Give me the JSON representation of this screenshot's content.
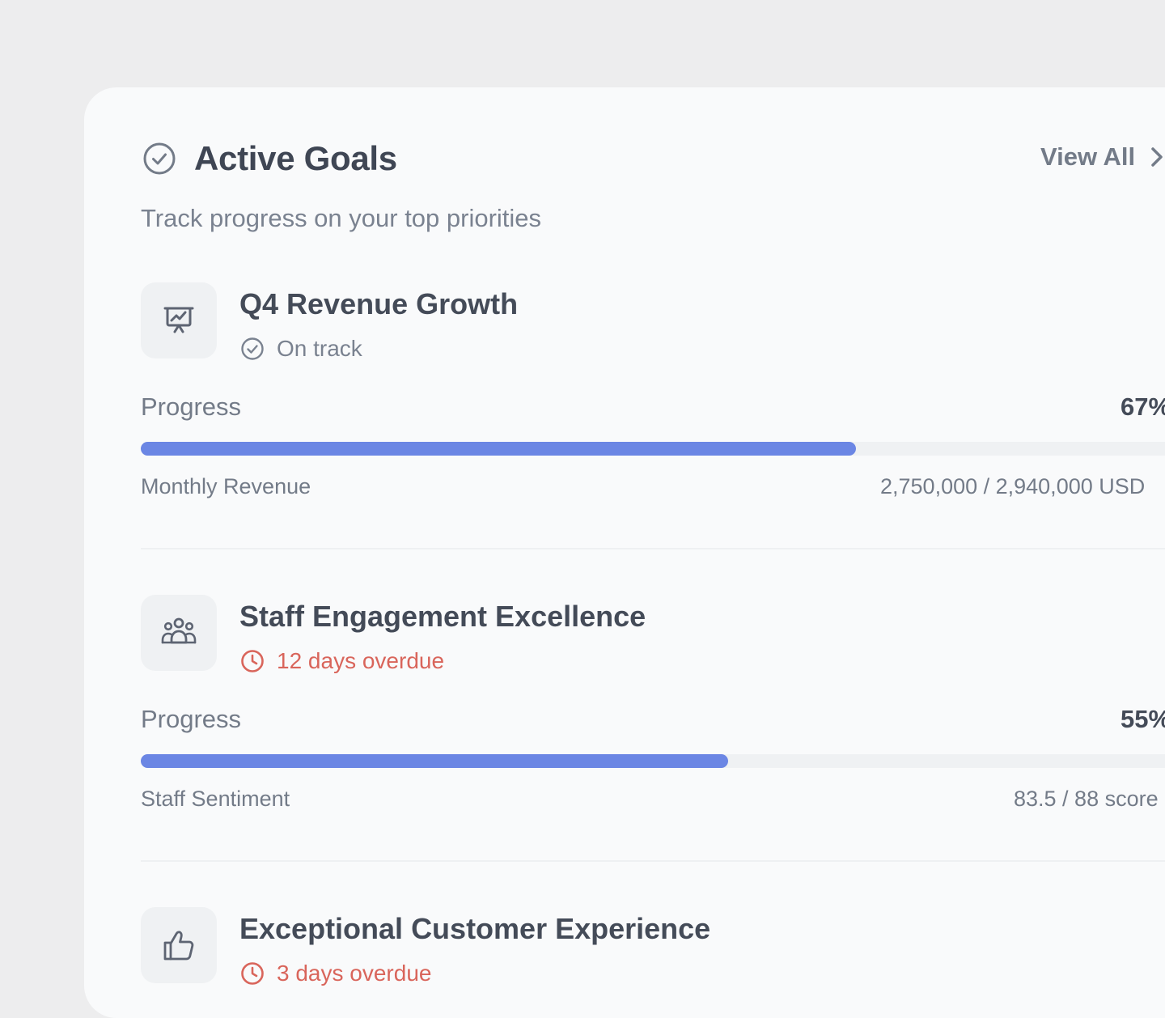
{
  "header": {
    "title": "Active Goals",
    "subtitle": "Track progress on your top priorities",
    "view_all_label": "View All"
  },
  "colors": {
    "accent": "#6b86e4",
    "overdue": "#d9655b",
    "muted": "#737b88"
  },
  "goals": [
    {
      "name": "Q4 Revenue Growth",
      "icon": "presentation-chart-icon",
      "status": "On track",
      "status_type": "on-track",
      "progress_label": "Progress",
      "progress_pct_label": "67%",
      "progress": 0.67,
      "metric_name": "Monthly Revenue",
      "metric_value": "2,750,000 / 2,940,000 USD"
    },
    {
      "name": "Staff Engagement Excellence",
      "icon": "user-group-icon",
      "status": "12 days overdue",
      "status_type": "overdue",
      "progress_label": "Progress",
      "progress_pct_label": "55%",
      "progress": 0.55,
      "metric_name": "Staff Sentiment",
      "metric_value": "83.5 / 88 score"
    },
    {
      "name": "Exceptional Customer Experience",
      "icon": "thumbs-up-icon",
      "status": "3 days overdue",
      "status_type": "overdue"
    }
  ]
}
